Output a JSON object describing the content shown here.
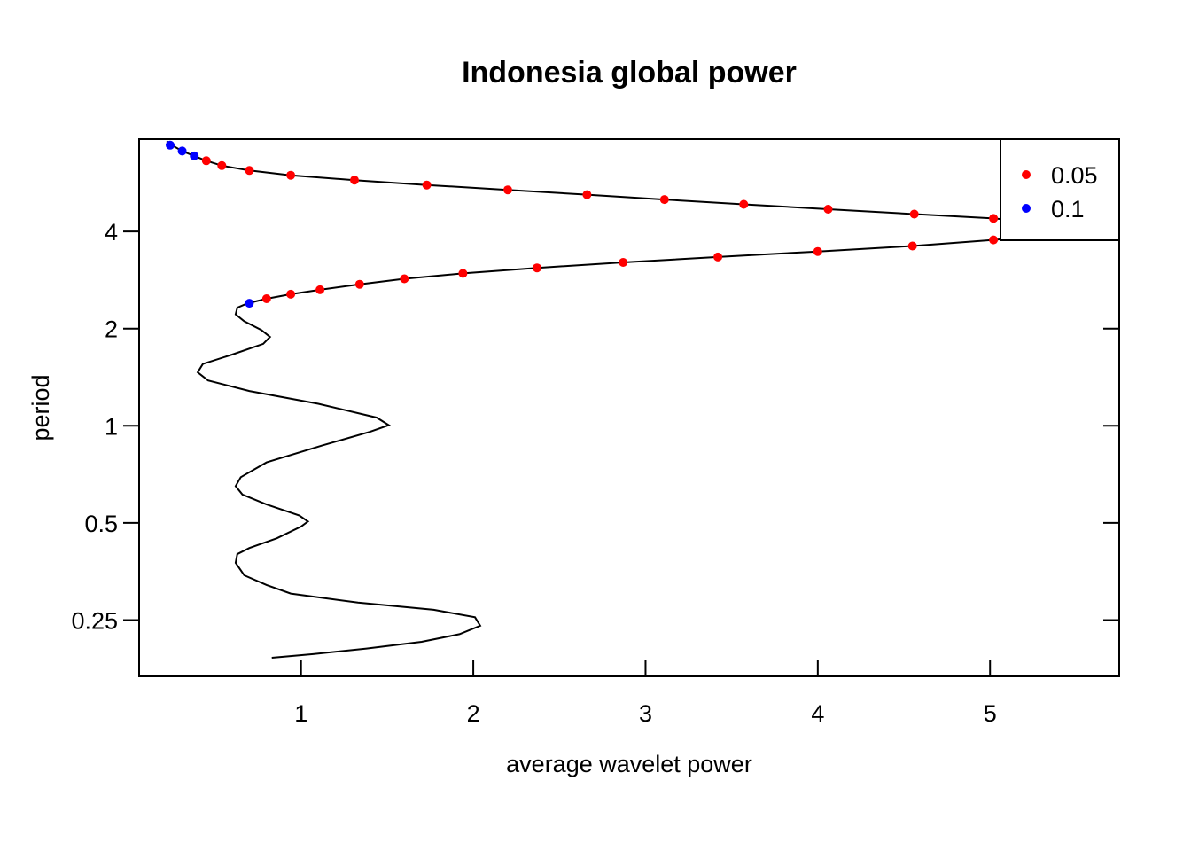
{
  "chart_data": {
    "type": "line",
    "title": "Indonesia global power",
    "xlabel": "average wavelet power",
    "ylabel": "period",
    "y_scale": "log2",
    "xlim": [
      0.06,
      5.75
    ],
    "ylim_log2": [
      -2.58,
      2.95
    ],
    "x_ticks": [
      1,
      2,
      3,
      4,
      5
    ],
    "x_tick_labels": [
      "1",
      "2",
      "3",
      "4",
      "5"
    ],
    "y_ticks": [
      0.25,
      0.5,
      1,
      2,
      4
    ],
    "y_tick_labels": [
      "0.25",
      "0.5",
      "1",
      "2",
      "4"
    ],
    "legend": {
      "position": "top-right",
      "entries": [
        {
          "label": "0.05",
          "color": "#ff0000"
        },
        {
          "label": "0.1",
          "color": "#0000ff"
        }
      ]
    },
    "series": [
      {
        "points": [
          [
            0.83,
            0.191
          ],
          [
            1.07,
            0.196
          ],
          [
            1.38,
            0.204
          ],
          [
            1.7,
            0.214
          ],
          [
            1.92,
            0.226
          ],
          [
            2.04,
            0.24
          ],
          [
            2.01,
            0.255
          ],
          [
            1.77,
            0.269
          ],
          [
            1.33,
            0.283
          ],
          [
            0.94,
            0.302
          ],
          [
            0.8,
            0.321
          ],
          [
            0.67,
            0.344
          ],
          [
            0.62,
            0.376
          ],
          [
            0.63,
            0.4
          ],
          [
            0.7,
            0.418
          ],
          [
            0.86,
            0.448
          ],
          [
            1.0,
            0.487
          ],
          [
            1.04,
            0.505
          ],
          [
            0.99,
            0.527
          ],
          [
            0.8,
            0.57
          ],
          [
            0.66,
            0.612
          ],
          [
            0.62,
            0.65
          ],
          [
            0.65,
            0.693
          ],
          [
            0.8,
            0.77
          ],
          [
            1.12,
            0.868
          ],
          [
            1.4,
            0.958
          ],
          [
            1.51,
            1.004
          ],
          [
            1.44,
            1.06
          ],
          [
            1.1,
            1.17
          ],
          [
            0.7,
            1.281
          ],
          [
            0.46,
            1.381
          ],
          [
            0.4,
            1.464
          ],
          [
            0.43,
            1.554
          ],
          [
            0.6,
            1.662
          ],
          [
            0.78,
            1.794
          ],
          [
            0.82,
            1.885
          ],
          [
            0.77,
            1.978
          ],
          [
            0.67,
            2.107
          ],
          [
            0.62,
            2.214
          ],
          [
            0.63,
            2.322
          ],
          [
            0.69,
            2.397
          ],
          [
            0.8,
            2.475
          ],
          [
            0.94,
            2.556
          ],
          [
            1.11,
            2.639
          ],
          [
            1.34,
            2.744
          ],
          [
            1.6,
            2.853
          ],
          [
            1.94,
            2.966
          ],
          [
            2.37,
            3.084
          ],
          [
            2.87,
            3.207
          ],
          [
            3.42,
            3.335
          ],
          [
            4.0,
            3.468
          ],
          [
            4.55,
            3.606
          ],
          [
            5.02,
            3.768
          ],
          [
            5.6,
            4.0
          ],
          [
            5.61,
            4.1
          ],
          [
            5.4,
            4.22
          ],
          [
            5.02,
            4.391
          ],
          [
            4.56,
            4.528
          ],
          [
            4.06,
            4.688
          ],
          [
            3.57,
            4.853
          ],
          [
            3.11,
            5.024
          ],
          [
            2.66,
            5.2
          ],
          [
            2.2,
            5.383
          ],
          [
            1.73,
            5.573
          ],
          [
            1.31,
            5.769
          ],
          [
            0.94,
            5.972
          ],
          [
            0.7,
            6.182
          ],
          [
            0.54,
            6.4
          ],
          [
            0.45,
            6.625
          ],
          [
            0.38,
            6.858
          ],
          [
            0.31,
            7.099
          ],
          [
            0.26,
            7.349
          ],
          [
            0.22,
            7.618
          ]
        ]
      }
    ],
    "significant_points": [
      {
        "level": "0.1",
        "x": 0.7,
        "y": 2.397
      },
      {
        "level": "0.05",
        "x": 0.8,
        "y": 2.475
      },
      {
        "level": "0.05",
        "x": 0.94,
        "y": 2.556
      },
      {
        "level": "0.05",
        "x": 1.11,
        "y": 2.639
      },
      {
        "level": "0.05",
        "x": 1.34,
        "y": 2.744
      },
      {
        "level": "0.05",
        "x": 1.6,
        "y": 2.853
      },
      {
        "level": "0.05",
        "x": 1.94,
        "y": 2.966
      },
      {
        "level": "0.05",
        "x": 2.37,
        "y": 3.084
      },
      {
        "level": "0.05",
        "x": 2.87,
        "y": 3.207
      },
      {
        "level": "0.05",
        "x": 3.42,
        "y": 3.335
      },
      {
        "level": "0.05",
        "x": 4.0,
        "y": 3.468
      },
      {
        "level": "0.05",
        "x": 4.55,
        "y": 3.606
      },
      {
        "level": "0.05",
        "x": 5.02,
        "y": 3.768
      },
      {
        "level": "0.05",
        "x": 5.4,
        "y": 4.22
      },
      {
        "level": "0.05",
        "x": 5.02,
        "y": 4.391
      },
      {
        "level": "0.05",
        "x": 4.56,
        "y": 4.528
      },
      {
        "level": "0.05",
        "x": 4.06,
        "y": 4.688
      },
      {
        "level": "0.05",
        "x": 3.57,
        "y": 4.853
      },
      {
        "level": "0.05",
        "x": 3.11,
        "y": 5.024
      },
      {
        "level": "0.05",
        "x": 2.66,
        "y": 5.2
      },
      {
        "level": "0.05",
        "x": 2.2,
        "y": 5.383
      },
      {
        "level": "0.05",
        "x": 1.73,
        "y": 5.573
      },
      {
        "level": "0.05",
        "x": 1.31,
        "y": 5.769
      },
      {
        "level": "0.05",
        "x": 0.94,
        "y": 5.972
      },
      {
        "level": "0.05",
        "x": 0.7,
        "y": 6.182
      },
      {
        "level": "0.05",
        "x": 0.54,
        "y": 6.4
      },
      {
        "level": "0.05",
        "x": 0.45,
        "y": 6.625
      },
      {
        "level": "0.1",
        "x": 0.38,
        "y": 6.858
      },
      {
        "level": "0.1",
        "x": 0.31,
        "y": 7.099
      },
      {
        "level": "0.1",
        "x": 0.24,
        "y": 7.4
      }
    ]
  }
}
